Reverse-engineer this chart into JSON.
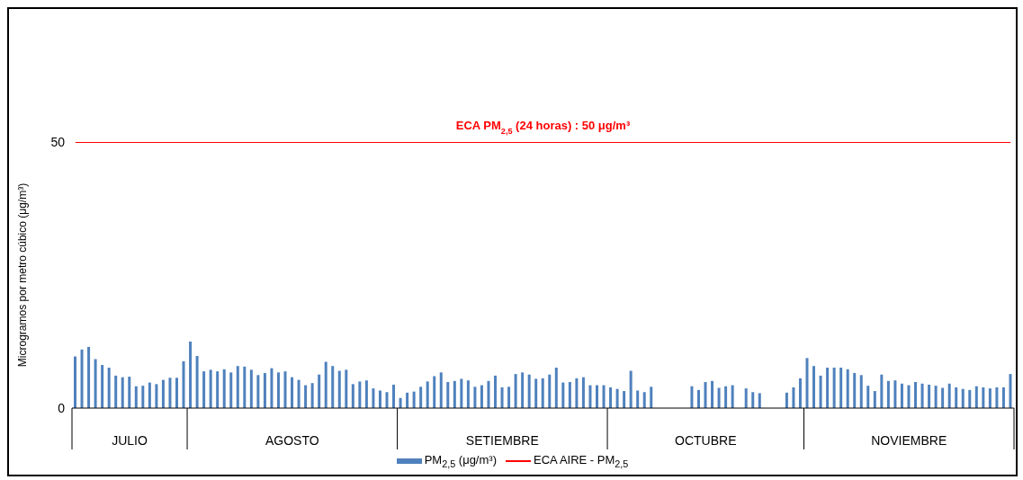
{
  "chart_data": {
    "type": "bar",
    "ylabel": "Microgramos por metro cúbico (μg/m³)",
    "legend": "bottom",
    "ylim": [
      0,
      50
    ],
    "yticks": [
      0,
      50
    ],
    "annotations": [
      "ECA PM$_{2,5}$ (24 horas) : 50 μg/m³"
    ],
    "categories": [
      null,
      null,
      null,
      null,
      null,
      null,
      null,
      null,
      "JULIO",
      null,
      null,
      null,
      null,
      null,
      null,
      null,
      null,
      null,
      null,
      null,
      null,
      null,
      null,
      null,
      null,
      null,
      null,
      null,
      null,
      null,
      null,
      null,
      "AGOSTO",
      null,
      null,
      null,
      null,
      null,
      null,
      null,
      null,
      null,
      null,
      null,
      null,
      null,
      null,
      null,
      null,
      null,
      null,
      null,
      null,
      null,
      null,
      null,
      null,
      null,
      null,
      null,
      null,
      null,
      null,
      "SETIEMBRE",
      null,
      null,
      null,
      null,
      null,
      null,
      null,
      null,
      null,
      null,
      null,
      null,
      null,
      null,
      null,
      null,
      null,
      null,
      null,
      null,
      null,
      null,
      null,
      null,
      null,
      null,
      null,
      null,
      null,
      "OCTUBRE",
      null,
      null,
      null,
      null,
      null,
      null,
      null,
      null,
      null,
      null,
      null,
      null,
      null,
      null,
      null,
      null,
      null,
      null,
      null,
      null,
      null,
      null,
      null,
      null,
      null,
      null,
      null,
      null,
      null,
      "NOVIEMBRE",
      null,
      null,
      null,
      null,
      null,
      null,
      null,
      null,
      null,
      null,
      null,
      null,
      null,
      null,
      null
    ],
    "series": [
      {
        "name": "PM$_{2,5}$ (μg/m³)",
        "color": "#4f81bd",
        "values": [
          9.7,
          11.0,
          11.5,
          9.2,
          8.1,
          7.6,
          6.1,
          5.8,
          5.9,
          4.1,
          4.2,
          4.8,
          4.5,
          5.3,
          5.7,
          5.7,
          8.8,
          12.5,
          9.8,
          6.9,
          7.2,
          6.9,
          7.3,
          6.7,
          7.9,
          7.8,
          7.2,
          6.2,
          6.6,
          7.5,
          6.7,
          6.9,
          5.8,
          5.3,
          4.3,
          4.7,
          6.3,
          8.7,
          7.9,
          7.0,
          7.2,
          4.5,
          5.0,
          5.2,
          3.7,
          3.3,
          3.0,
          4.4,
          1.9,
          2.9,
          3.1,
          4.0,
          5.0,
          6.0,
          6.7,
          4.9,
          5.1,
          5.5,
          5.2,
          4.0,
          4.3,
          5.1,
          6.1,
          3.9,
          4.0,
          6.4,
          6.7,
          6.3,
          5.5,
          5.6,
          6.3,
          7.6,
          4.8,
          4.9,
          5.6,
          5.8,
          4.3,
          4.3,
          4.3,
          3.9,
          3.6,
          3.2,
          7.0,
          3.3,
          3.0,
          4.0,
          null,
          null,
          null,
          null,
          null,
          4.1,
          3.4,
          4.9,
          5.1,
          3.8,
          4.1,
          4.3,
          null,
          3.7,
          3.0,
          2.8,
          null,
          null,
          null,
          2.9,
          3.9,
          5.6,
          9.4,
          7.9,
          6.1,
          7.6,
          7.6,
          7.6,
          7.3,
          6.6,
          6.2,
          4.2,
          3.2,
          6.3,
          5.1,
          5.2,
          4.6,
          4.3,
          4.9,
          4.6,
          4.4,
          4.2,
          3.8,
          4.6,
          3.9,
          3.6,
          3.4,
          4.1,
          3.9,
          3.7,
          3.9,
          3.9,
          6.4
        ]
      },
      {
        "name": "ECA AIRE - PM$_{2,5}$",
        "type": "line",
        "color": "#ff0000",
        "values": [
          50,
          50,
          50,
          50,
          50,
          50,
          50,
          50,
          50,
          50,
          50,
          50,
          50,
          50,
          50,
          50,
          50,
          50,
          50,
          50,
          50,
          50,
          50,
          50,
          50,
          50,
          50,
          50,
          50,
          50,
          50,
          50,
          50,
          50,
          50,
          50,
          50,
          50,
          50,
          50,
          50,
          50,
          50,
          50,
          50,
          50,
          50,
          50,
          50,
          50,
          50,
          50,
          50,
          50,
          50,
          50,
          50,
          50,
          50,
          50,
          50,
          50,
          50,
          50,
          50,
          50,
          50,
          50,
          50,
          50,
          50,
          50,
          50,
          50,
          50,
          50,
          50,
          50,
          50,
          50,
          50,
          50,
          50,
          50,
          50,
          50,
          50,
          50,
          50,
          50,
          50,
          50,
          50,
          50,
          50,
          50,
          50,
          50,
          50,
          50,
          50,
          50,
          50,
          50,
          50,
          50,
          50,
          50,
          50,
          50,
          50,
          50,
          50,
          50,
          50,
          50,
          50,
          50,
          50,
          50,
          50,
          50,
          50,
          50,
          50,
          50,
          50,
          50,
          50,
          50,
          50,
          50,
          50,
          50,
          50,
          50,
          50,
          50,
          50
        ]
      }
    ]
  }
}
